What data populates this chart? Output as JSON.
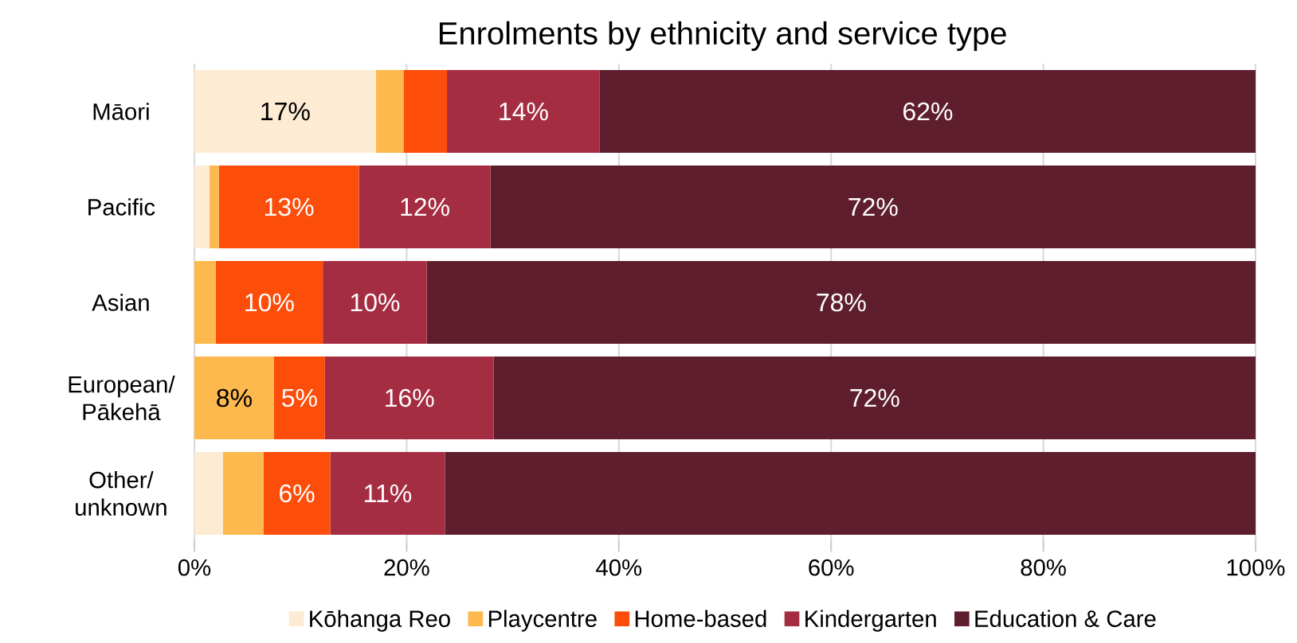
{
  "chart_data": {
    "type": "bar",
    "title": "Enrolments by ethnicity and service type",
    "orientation": "horizontal",
    "stacked": true,
    "categories": [
      "Māori",
      "Pacific",
      "Asian",
      "European/ Pākehā",
      "Other/ unknown"
    ],
    "series": [
      {
        "name": "Kōhanga Reo",
        "color": "#fdebd3",
        "values": [
          17.1,
          1.4,
          0,
          0,
          2.7
        ],
        "value_labels": [
          "17%",
          null,
          null,
          null,
          null
        ]
      },
      {
        "name": "Playcentre",
        "color": "#fdb94e",
        "values": [
          2.6,
          0.9,
          2.0,
          7.5,
          3.8
        ],
        "value_labels": [
          null,
          null,
          null,
          "8%",
          null
        ]
      },
      {
        "name": "Home-based",
        "color": "#fc4e0a",
        "values": [
          4.1,
          13.2,
          10.1,
          4.8,
          6.3
        ],
        "value_labels": [
          null,
          "13%",
          "10%",
          "5%",
          "6%"
        ]
      },
      {
        "name": "Kindergarten",
        "color": "#a52d42",
        "values": [
          14.4,
          12.4,
          9.8,
          15.9,
          10.8
        ],
        "value_labels": [
          "14%",
          "12%",
          "10%",
          "16%",
          "11%"
        ]
      },
      {
        "name": "Education & Care",
        "color": "#5f1e2e",
        "values": [
          61.8,
          72.1,
          78.1,
          71.8,
          76.4
        ],
        "value_labels": [
          "62%",
          "72%",
          "78%",
          "72%",
          null
        ]
      }
    ],
    "xlim": [
      0,
      100
    ],
    "xticks": [
      {
        "value": 0,
        "label": "0%"
      },
      {
        "value": 20,
        "label": "20%"
      },
      {
        "value": 40,
        "label": "40%"
      },
      {
        "value": 60,
        "label": "60%"
      },
      {
        "value": 80,
        "label": "80%"
      },
      {
        "value": 100,
        "label": "100%"
      }
    ],
    "grid": "x",
    "legend": "bottom"
  }
}
